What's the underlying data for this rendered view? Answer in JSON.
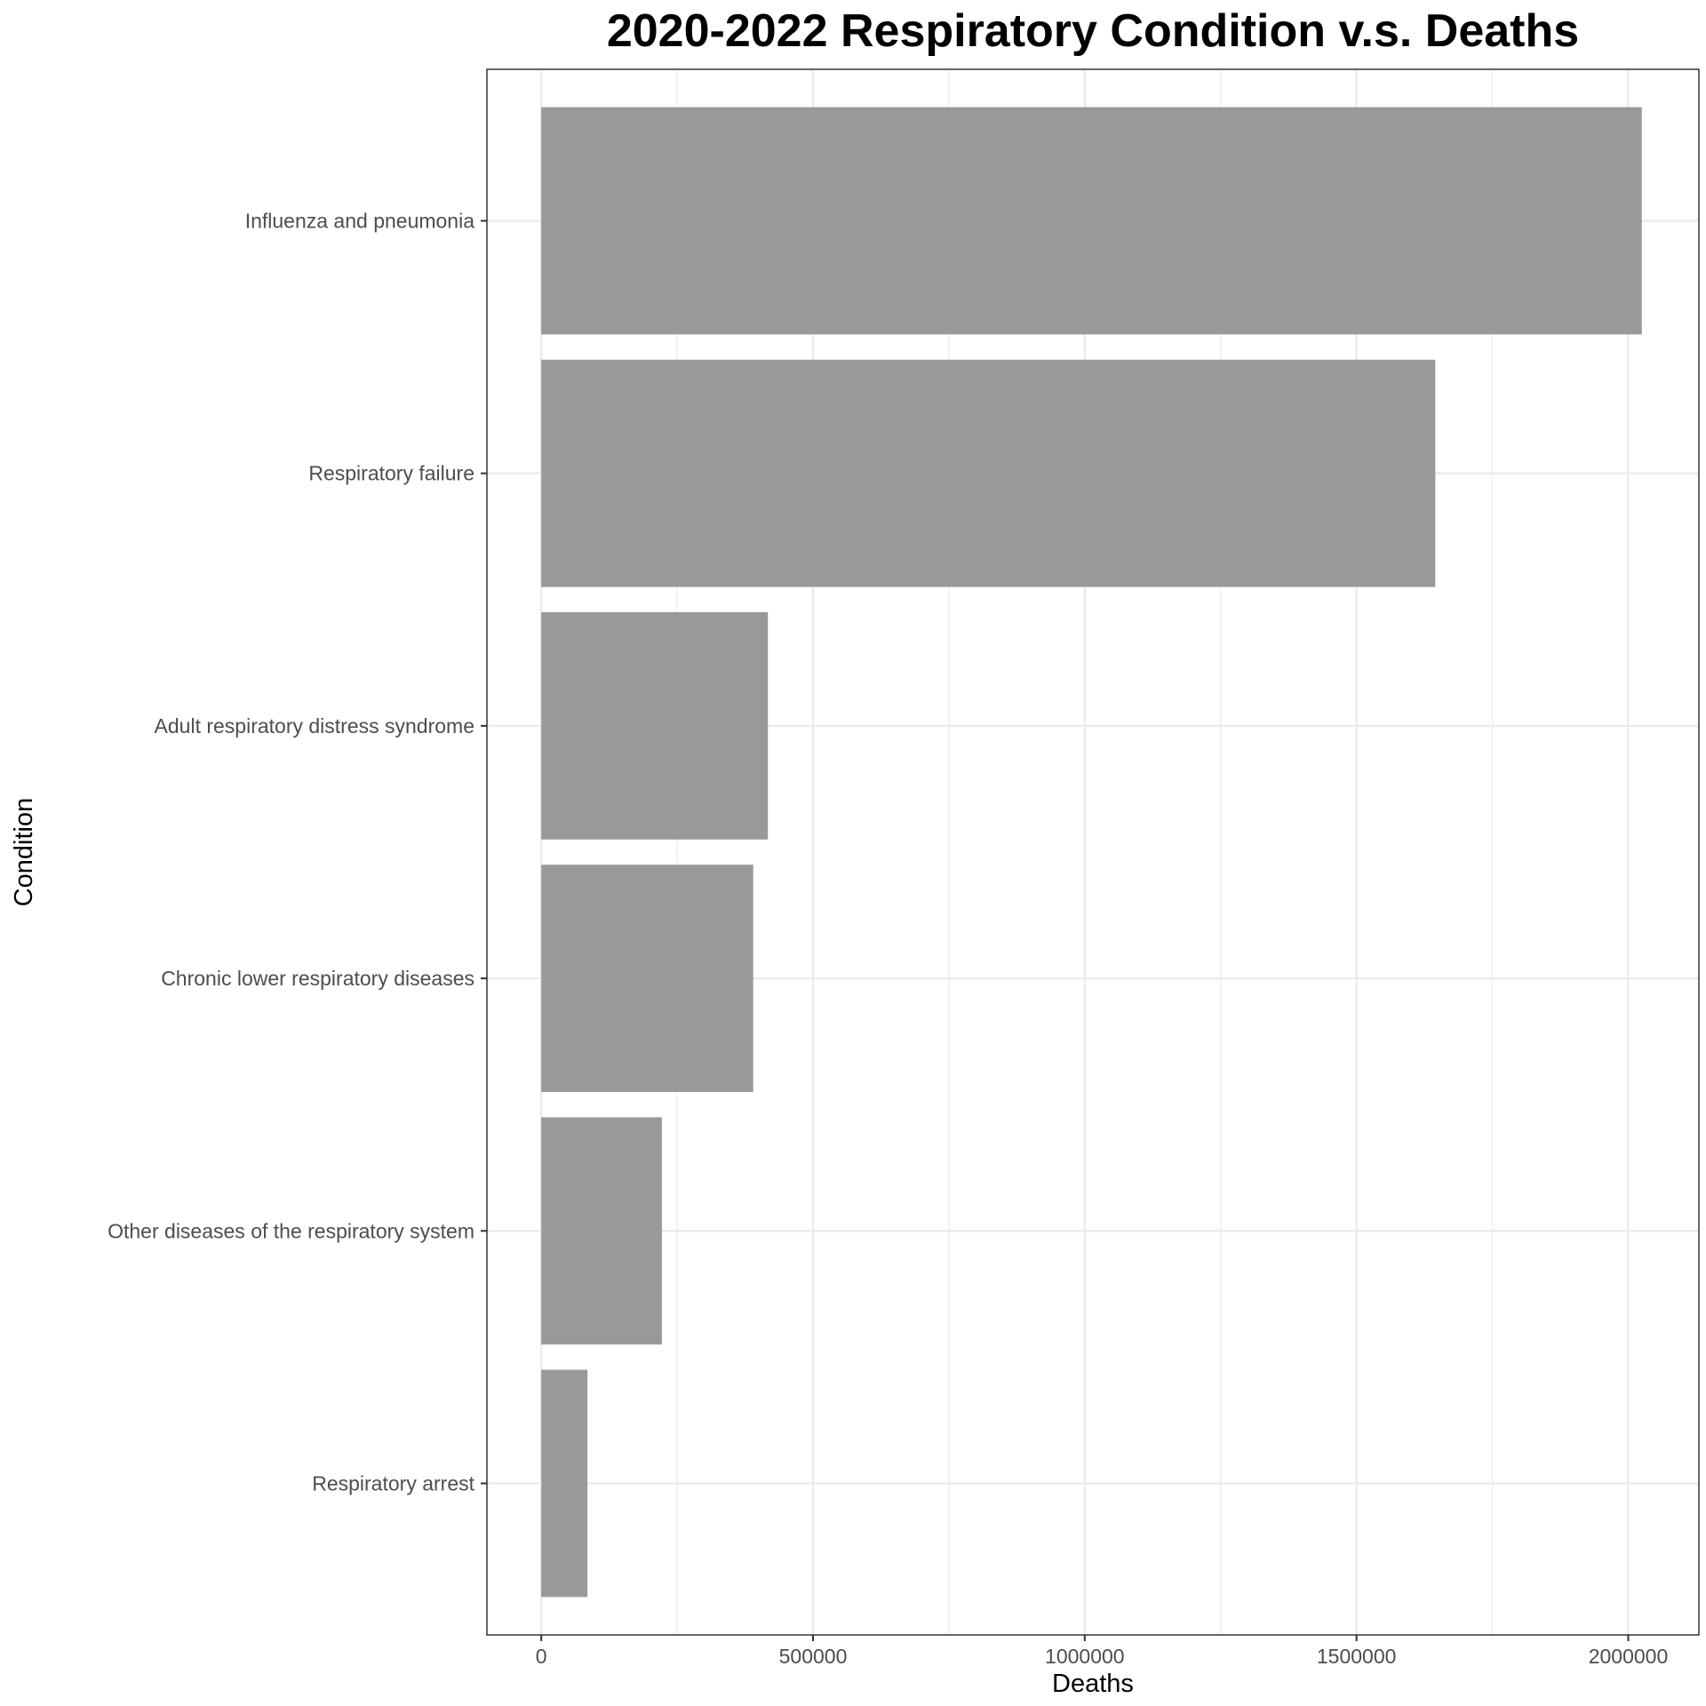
{
  "chart_data": {
    "type": "bar",
    "orientation": "horizontal",
    "title": "2020-2022 Respiratory Condition v.s. Deaths",
    "xlabel": "Deaths",
    "ylabel": "Condition",
    "categories": [
      "Influenza and pneumonia",
      "Respiratory failure",
      "Adult respiratory distress syndrome",
      "Chronic lower respiratory diseases",
      "Other diseases of the respiratory system",
      "Respiratory arrest"
    ],
    "values": [
      2025000,
      1645000,
      417000,
      390000,
      222000,
      85000
    ],
    "xlim": [
      -100000,
      2130000
    ],
    "xticks": [
      0,
      500000,
      1000000,
      1500000,
      2000000
    ],
    "xtick_labels": [
      "0",
      "500000",
      "1000000",
      "1500000",
      "2000000"
    ],
    "grid": true,
    "legend": "none",
    "colors": {
      "bar": "#999999",
      "grid": "#ebebeb",
      "panel_border": "#333333",
      "background": "#ffffff"
    }
  }
}
